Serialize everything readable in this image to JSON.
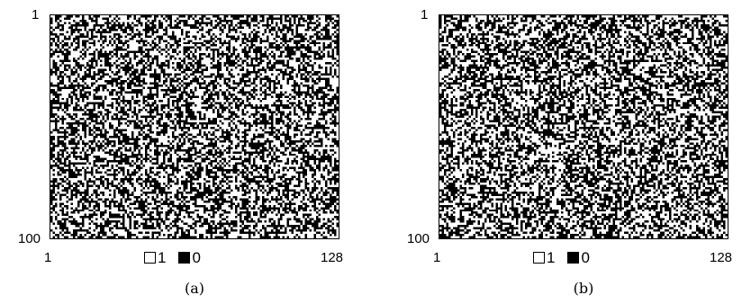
{
  "chart_data": [
    {
      "type": "heatmap",
      "panel_label": "(a)",
      "rows": 100,
      "cols": 128,
      "y_ticks": [
        "1",
        "100"
      ],
      "x_ticks": [
        "1",
        "128"
      ],
      "values_set": [
        1,
        0
      ],
      "legend": [
        {
          "label": "1",
          "color": "#ffffff"
        },
        {
          "label": "0",
          "color": "#000000"
        }
      ]
    },
    {
      "type": "heatmap",
      "panel_label": "(b)",
      "rows": 100,
      "cols": 128,
      "y_ticks": [
        "1",
        "100"
      ],
      "x_ticks": [
        "1",
        "128"
      ],
      "values_set": [
        1,
        0
      ],
      "legend": [
        {
          "label": "1",
          "color": "#ffffff"
        },
        {
          "label": "0",
          "color": "#000000"
        }
      ]
    }
  ]
}
